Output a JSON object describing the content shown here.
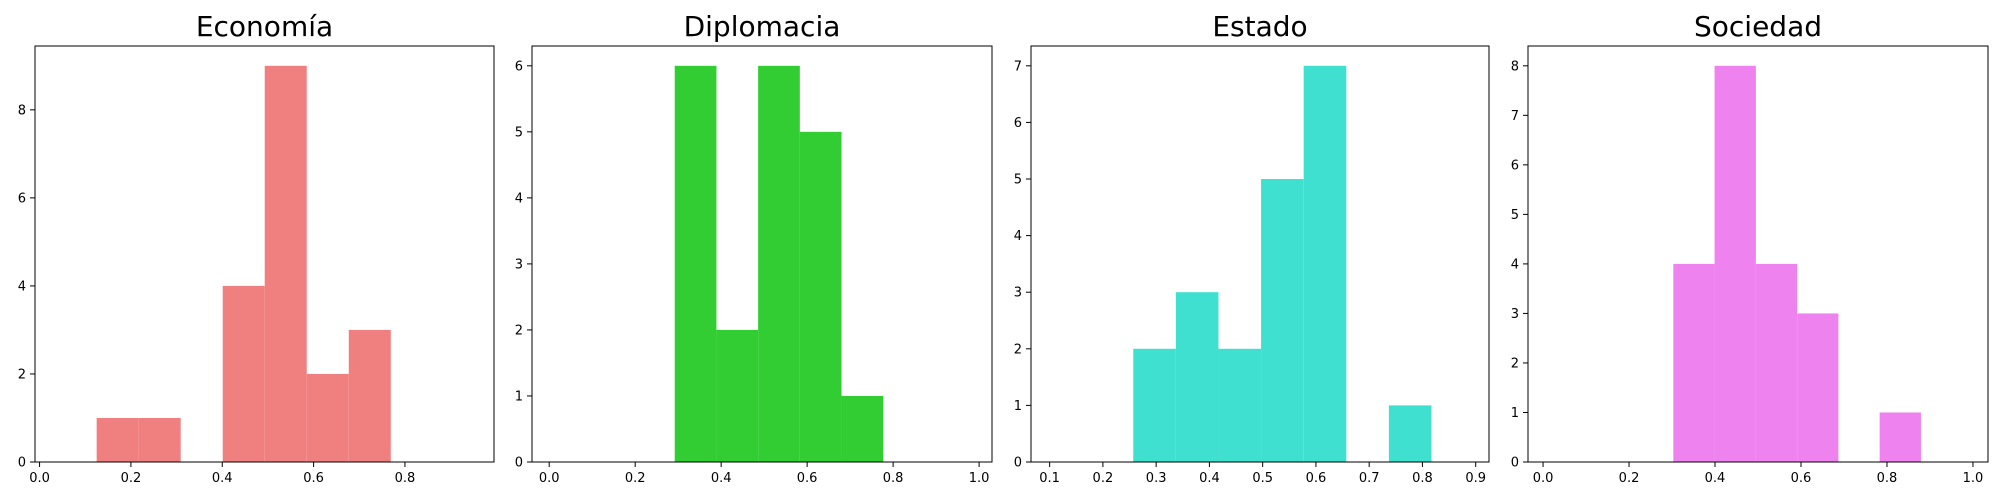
{
  "chart_data": [
    {
      "type": "bar",
      "title": "Economía",
      "color": "#f08080",
      "xlim": [
        -0.01,
        0.995
      ],
      "ylim": [
        0,
        9.45
      ],
      "xticks": [
        "0.0",
        "0.2",
        "0.4",
        "0.6",
        "0.8"
      ],
      "xtick_values": [
        0.0,
        0.2,
        0.4,
        0.6,
        0.8
      ],
      "yticks": [
        "0",
        "2",
        "4",
        "6",
        "8"
      ],
      "ytick_values": [
        0,
        2,
        4,
        6,
        8
      ],
      "bins": [
        [
          0.125,
          0.217
        ],
        [
          0.217,
          0.309
        ],
        [
          0.309,
          0.401
        ],
        [
          0.401,
          0.493
        ],
        [
          0.493,
          0.585
        ],
        [
          0.585,
          0.677
        ],
        [
          0.677,
          0.769
        ]
      ],
      "counts": [
        1,
        1,
        0,
        4,
        9,
        2,
        3
      ]
    },
    {
      "type": "bar",
      "title": "Diplomacia",
      "color": "#32cd32",
      "xlim": [
        -0.04,
        1.03
      ],
      "ylim": [
        0,
        6.3
      ],
      "xticks": [
        "0.0",
        "0.2",
        "0.4",
        "0.6",
        "0.8",
        "1.0"
      ],
      "xtick_values": [
        0.0,
        0.2,
        0.4,
        0.6,
        0.8,
        1.0
      ],
      "yticks": [
        "0",
        "1",
        "2",
        "3",
        "4",
        "5",
        "6"
      ],
      "ytick_values": [
        0,
        1,
        2,
        3,
        4,
        5,
        6
      ],
      "bins": [
        [
          0.292,
          0.389
        ],
        [
          0.389,
          0.486
        ],
        [
          0.486,
          0.583
        ],
        [
          0.583,
          0.68
        ],
        [
          0.68,
          0.777
        ]
      ],
      "counts": [
        6,
        2,
        6,
        5,
        1
      ]
    },
    {
      "type": "bar",
      "title": "Estado",
      "color": "#40e0d0",
      "xlim": [
        0.065,
        0.925
      ],
      "ylim": [
        0,
        7.35
      ],
      "xticks": [
        "0.1",
        "0.2",
        "0.3",
        "0.4",
        "0.5",
        "0.6",
        "0.7",
        "0.8",
        "0.9"
      ],
      "xtick_values": [
        0.1,
        0.2,
        0.3,
        0.4,
        0.5,
        0.6,
        0.7,
        0.8,
        0.9
      ],
      "yticks": [
        "0",
        "1",
        "2",
        "3",
        "4",
        "5",
        "6",
        "7"
      ],
      "ytick_values": [
        0,
        1,
        2,
        3,
        4,
        5,
        6,
        7
      ],
      "bins": [
        [
          0.257,
          0.337
        ],
        [
          0.337,
          0.417
        ],
        [
          0.417,
          0.497
        ],
        [
          0.497,
          0.577
        ],
        [
          0.577,
          0.657
        ],
        [
          0.657,
          0.737
        ],
        [
          0.737,
          0.817
        ]
      ],
      "counts": [
        2,
        3,
        2,
        5,
        7,
        0,
        1
      ]
    },
    {
      "type": "bar",
      "title": "Sociedad",
      "color": "#ee82ee",
      "xlim": [
        -0.035,
        1.035
      ],
      "ylim": [
        0,
        8.4
      ],
      "xticks": [
        "0.0",
        "0.2",
        "0.4",
        "0.6",
        "0.8",
        "1.0"
      ],
      "xtick_values": [
        0.0,
        0.2,
        0.4,
        0.6,
        0.8,
        1.0
      ],
      "yticks": [
        "0",
        "1",
        "2",
        "3",
        "4",
        "5",
        "6",
        "7",
        "8"
      ],
      "ytick_values": [
        0,
        1,
        2,
        3,
        4,
        5,
        6,
        7,
        8
      ],
      "bins": [
        [
          0.303,
          0.399
        ],
        [
          0.399,
          0.495
        ],
        [
          0.495,
          0.591
        ],
        [
          0.591,
          0.687
        ],
        [
          0.687,
          0.783
        ],
        [
          0.783,
          0.879
        ]
      ],
      "counts": [
        4,
        8,
        4,
        3,
        0,
        1
      ]
    }
  ]
}
